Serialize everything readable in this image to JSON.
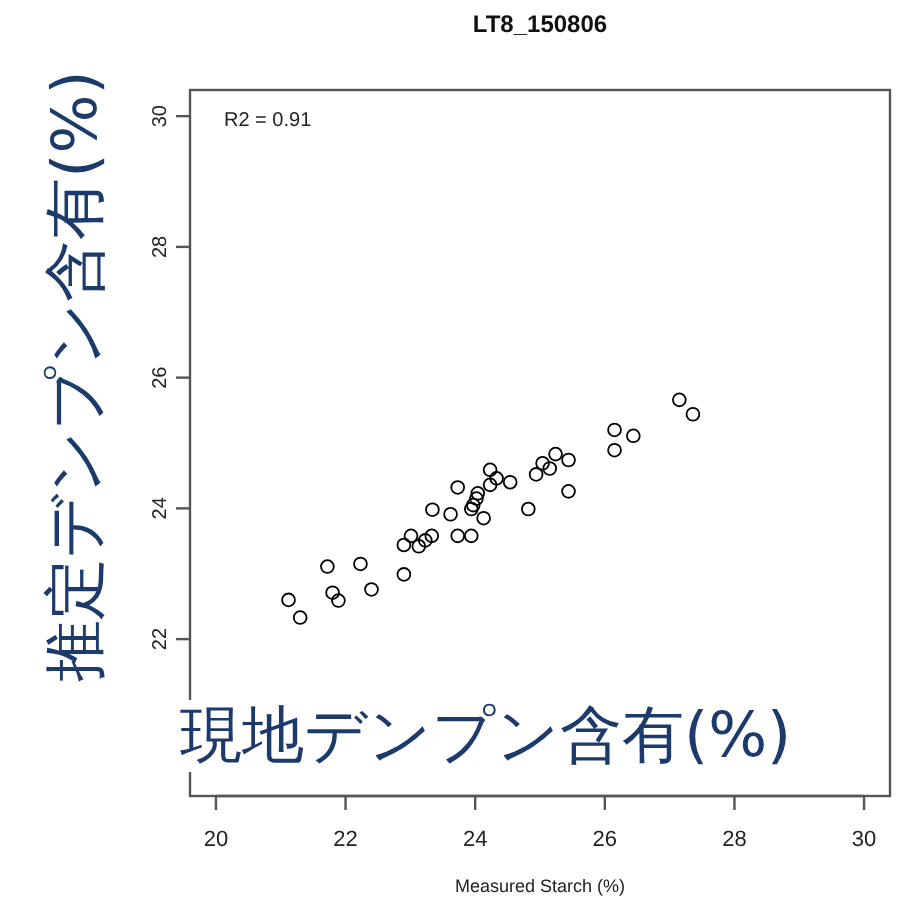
{
  "chart_data": {
    "type": "scatter",
    "title": "LT8_150806",
    "xlabel": "Measured Starch (%)",
    "ylabel": "推定デンプン含有(%)",
    "annotations": [
      "R2 = 0.91",
      "現地デンプン含有(%)"
    ],
    "xlim": [
      19.6,
      30.4
    ],
    "ylim": [
      19.6,
      30.4
    ],
    "xticks": [
      20,
      22,
      24,
      26,
      28,
      30
    ],
    "yticks": [
      22,
      24,
      26,
      28,
      30
    ],
    "marker": "circle",
    "series": [
      {
        "color": "#000000",
        "x": [
          21.12,
          21.3,
          21.72,
          21.8,
          21.89,
          22.23,
          22.4,
          22.9,
          22.9,
          23.01,
          23.13,
          23.23,
          23.33,
          23.34,
          23.62,
          23.73,
          23.73,
          23.94,
          23.94,
          23.97,
          24.02,
          24.04,
          24.13,
          24.23,
          24.23,
          24.33,
          24.54,
          24.82,
          24.94,
          25.04,
          25.15,
          25.24,
          25.44,
          25.44,
          26.15,
          26.15,
          26.44,
          27.15,
          27.36
        ],
        "values": [
          22.6,
          22.33,
          23.11,
          22.71,
          22.59,
          23.15,
          22.76,
          22.99,
          23.44,
          23.58,
          23.42,
          23.51,
          23.58,
          23.98,
          23.91,
          23.58,
          24.32,
          23.58,
          23.99,
          24.05,
          24.15,
          24.23,
          23.85,
          24.59,
          24.36,
          24.46,
          24.4,
          23.99,
          24.52,
          24.69,
          24.61,
          24.83,
          24.74,
          24.26,
          25.2,
          24.89,
          25.11,
          25.66,
          25.44
        ]
      }
    ]
  }
}
